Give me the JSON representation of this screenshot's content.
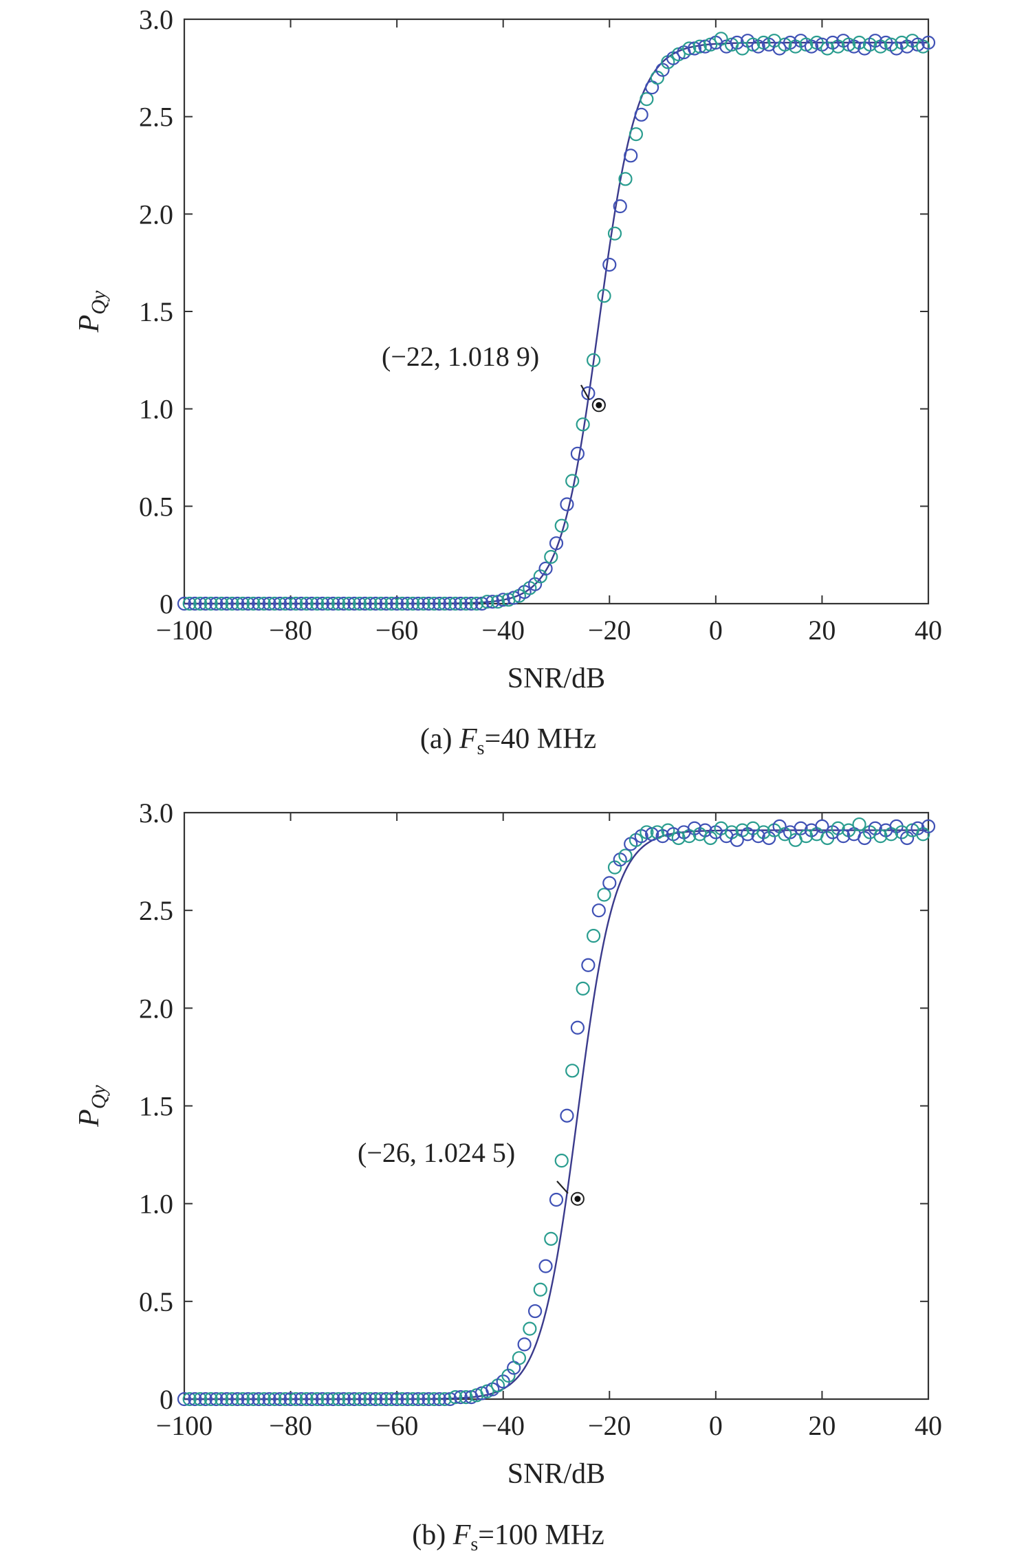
{
  "chart_data": [
    {
      "type": "scatter",
      "caption_prefix": "(a) ",
      "caption_var": "F",
      "caption_sub": "s",
      "caption_suffix": "=40 MHz",
      "xlabel": "SNR/dB",
      "ylabel_main": "P",
      "ylabel_sub": "Qy",
      "xlim": [
        -100,
        40
      ],
      "ylim": [
        0,
        3.0
      ],
      "xticks": [
        -100,
        -80,
        -60,
        -40,
        -20,
        0,
        20,
        40
      ],
      "xtick_labels": [
        "−100",
        "−80",
        "−60",
        "−40",
        "−20",
        "0",
        "20",
        "40"
      ],
      "yticks": [
        0,
        0.5,
        1.0,
        1.5,
        2.0,
        2.5,
        3.0
      ],
      "ytick_labels": [
        "0",
        "0.5",
        "1.0",
        "1.5",
        "2.0",
        "2.5",
        "3.0"
      ],
      "grid": false,
      "curve": {
        "center": -22,
        "scale": 3.6,
        "max": 2.88,
        "color": "#3a3a8c"
      },
      "markers": {
        "color_a": "#3f51b5",
        "color_b": "#2a9d8f",
        "x": [
          -100,
          -99,
          -98,
          -97,
          -96,
          -95,
          -94,
          -93,
          -92,
          -91,
          -90,
          -89,
          -88,
          -87,
          -86,
          -85,
          -84,
          -83,
          -82,
          -81,
          -80,
          -79,
          -78,
          -77,
          -76,
          -75,
          -74,
          -73,
          -72,
          -71,
          -70,
          -69,
          -68,
          -67,
          -66,
          -65,
          -64,
          -63,
          -62,
          -61,
          -60,
          -59,
          -58,
          -57,
          -56,
          -55,
          -54,
          -53,
          -52,
          -51,
          -50,
          -49,
          -48,
          -47,
          -46,
          -45,
          -44,
          -43,
          -42,
          -41,
          -40,
          -39,
          -38,
          -37,
          -36,
          -35,
          -34,
          -33,
          -32,
          -31,
          -30,
          -29,
          -28,
          -27,
          -26,
          -25,
          -24,
          -23,
          -22,
          -21,
          -20,
          -19,
          -18,
          -17,
          -16,
          -15,
          -14,
          -13,
          -12,
          -11,
          -10,
          -9,
          -8,
          -7,
          -6,
          -5,
          -4,
          -3,
          -2,
          -1,
          0,
          1,
          2,
          3,
          4,
          5,
          6,
          7,
          8,
          9,
          10,
          11,
          12,
          13,
          14,
          15,
          16,
          17,
          18,
          19,
          20,
          21,
          22,
          23,
          24,
          25,
          26,
          27,
          28,
          29,
          30,
          31,
          32,
          33,
          34,
          35,
          36,
          37,
          38,
          39,
          40
        ],
        "y": [
          0.0,
          0.0,
          0.0,
          0.0,
          0.0,
          0.0,
          0.0,
          0.0,
          0.0,
          0.0,
          0.0,
          0.0,
          0.0,
          0.0,
          0.0,
          0.0,
          0.0,
          0.0,
          0.0,
          0.0,
          0.0,
          0.0,
          0.0,
          0.0,
          0.0,
          0.0,
          0.0,
          0.0,
          0.0,
          0.0,
          0.0,
          0.0,
          0.0,
          0.0,
          0.0,
          0.0,
          0.0,
          0.0,
          0.0,
          0.0,
          0.0,
          0.0,
          0.0,
          0.0,
          0.0,
          0.0,
          0.0,
          0.0,
          0.0,
          0.0,
          0.0,
          0.0,
          0.0,
          0.0,
          0.0,
          0.0,
          0.0,
          0.01,
          0.01,
          0.01,
          0.02,
          0.02,
          0.03,
          0.04,
          0.06,
          0.08,
          0.1,
          0.14,
          0.18,
          0.24,
          0.31,
          0.4,
          0.51,
          0.63,
          0.77,
          0.92,
          1.08,
          1.25,
          1.02,
          1.58,
          1.74,
          1.9,
          2.04,
          2.18,
          2.3,
          2.41,
          2.51,
          2.59,
          2.65,
          2.7,
          2.74,
          2.78,
          2.8,
          2.82,
          2.83,
          2.85,
          2.85,
          2.86,
          2.86,
          2.87,
          2.88,
          2.9,
          2.86,
          2.87,
          2.88,
          2.85,
          2.89,
          2.87,
          2.86,
          2.88,
          2.87,
          2.89,
          2.85,
          2.87,
          2.88,
          2.86,
          2.89,
          2.87,
          2.86,
          2.88,
          2.87,
          2.85,
          2.88,
          2.86,
          2.89,
          2.87,
          2.86,
          2.88,
          2.85,
          2.87,
          2.89,
          2.86,
          2.88,
          2.87,
          2.85,
          2.88,
          2.86,
          2.89,
          2.87,
          2.86,
          2.88
        ]
      },
      "highlight": {
        "x": -22,
        "y": 1.0189,
        "label": "(−22, 1.018 9)"
      }
    },
    {
      "type": "scatter",
      "caption_prefix": "(b) ",
      "caption_var": "F",
      "caption_sub": "s",
      "caption_suffix": "=100 MHz",
      "xlabel": "SNR/dB",
      "ylabel_main": "P",
      "ylabel_sub": "Qy",
      "xlim": [
        -100,
        40
      ],
      "ylim": [
        0,
        3.0
      ],
      "xticks": [
        -100,
        -80,
        -60,
        -40,
        -20,
        0,
        20,
        40
      ],
      "xtick_labels": [
        "−100",
        "−80",
        "−60",
        "−40",
        "−20",
        "0",
        "20",
        "40"
      ],
      "yticks": [
        0,
        0.5,
        1.0,
        1.5,
        2.0,
        2.5,
        3.0
      ],
      "ytick_labels": [
        "0",
        "0.5",
        "1.0",
        "1.5",
        "2.0",
        "2.5",
        "3.0"
      ],
      "grid": false,
      "curve": {
        "center": -26,
        "scale": 3.5,
        "max": 2.91,
        "color": "#3a3a8c"
      },
      "markers": {
        "color_a": "#3f51b5",
        "color_b": "#2a9d8f",
        "x": [
          -100,
          -99,
          -98,
          -97,
          -96,
          -95,
          -94,
          -93,
          -92,
          -91,
          -90,
          -89,
          -88,
          -87,
          -86,
          -85,
          -84,
          -83,
          -82,
          -81,
          -80,
          -79,
          -78,
          -77,
          -76,
          -75,
          -74,
          -73,
          -72,
          -71,
          -70,
          -69,
          -68,
          -67,
          -66,
          -65,
          -64,
          -63,
          -62,
          -61,
          -60,
          -59,
          -58,
          -57,
          -56,
          -55,
          -54,
          -53,
          -52,
          -51,
          -50,
          -49,
          -48,
          -47,
          -46,
          -45,
          -44,
          -43,
          -42,
          -41,
          -40,
          -39,
          -38,
          -37,
          -36,
          -35,
          -34,
          -33,
          -32,
          -31,
          -30,
          -29,
          -28,
          -27,
          -26,
          -25,
          -24,
          -23,
          -22,
          -21,
          -20,
          -19,
          -18,
          -17,
          -16,
          -15,
          -14,
          -13,
          -12,
          -11,
          -10,
          -9,
          -8,
          -7,
          -6,
          -5,
          -4,
          -3,
          -2,
          -1,
          0,
          1,
          2,
          3,
          4,
          5,
          6,
          7,
          8,
          9,
          10,
          11,
          12,
          13,
          14,
          15,
          16,
          17,
          18,
          19,
          20,
          21,
          22,
          23,
          24,
          25,
          26,
          27,
          28,
          29,
          30,
          31,
          32,
          33,
          34,
          35,
          36,
          37,
          38,
          39,
          40
        ],
        "y": [
          0.0,
          0.0,
          0.0,
          0.0,
          0.0,
          0.0,
          0.0,
          0.0,
          0.0,
          0.0,
          0.0,
          0.0,
          0.0,
          0.0,
          0.0,
          0.0,
          0.0,
          0.0,
          0.0,
          0.0,
          0.0,
          0.0,
          0.0,
          0.0,
          0.0,
          0.0,
          0.0,
          0.0,
          0.0,
          0.0,
          0.0,
          0.0,
          0.0,
          0.0,
          0.0,
          0.0,
          0.0,
          0.0,
          0.0,
          0.0,
          0.0,
          0.0,
          0.0,
          0.0,
          0.0,
          0.0,
          0.0,
          0.0,
          0.0,
          0.0,
          0.0,
          0.01,
          0.01,
          0.01,
          0.01,
          0.02,
          0.03,
          0.04,
          0.05,
          0.07,
          0.09,
          0.12,
          0.16,
          0.21,
          0.28,
          0.36,
          0.45,
          0.56,
          0.68,
          0.82,
          1.02,
          1.22,
          1.45,
          1.68,
          1.9,
          2.1,
          2.22,
          2.37,
          2.5,
          2.58,
          2.64,
          2.72,
          2.76,
          2.78,
          2.84,
          2.86,
          2.88,
          2.9,
          2.89,
          2.9,
          2.88,
          2.91,
          2.89,
          2.87,
          2.9,
          2.88,
          2.92,
          2.89,
          2.91,
          2.87,
          2.9,
          2.92,
          2.88,
          2.9,
          2.86,
          2.91,
          2.89,
          2.92,
          2.88,
          2.9,
          2.87,
          2.91,
          2.93,
          2.89,
          2.9,
          2.86,
          2.92,
          2.88,
          2.91,
          2.89,
          2.93,
          2.87,
          2.9,
          2.92,
          2.88,
          2.91,
          2.89,
          2.94,
          2.87,
          2.9,
          2.92,
          2.88,
          2.91,
          2.89,
          2.93,
          2.9,
          2.87,
          2.91,
          2.92,
          2.89,
          2.93
        ]
      },
      "highlight": {
        "x": -26,
        "y": 1.0245,
        "label": "(−26, 1.024 5)"
      }
    }
  ]
}
